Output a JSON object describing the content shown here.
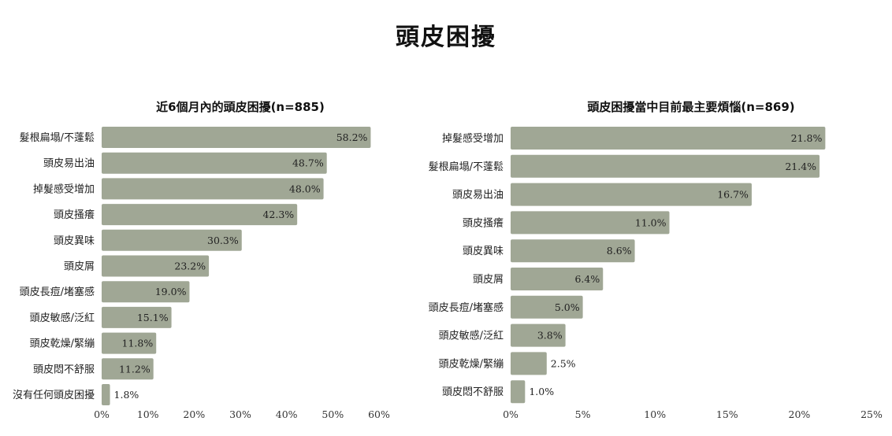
{
  "title": "頭皮困擾",
  "colors": {
    "bar": "#a0a795",
    "axis": "#cfcfcf",
    "text": "#222222"
  },
  "chart_data": [
    {
      "type": "bar",
      "orientation": "horizontal",
      "title": "近6個月內的頭皮困擾(n=885)",
      "categories": [
        "髮根扁塌/不蓬鬆",
        "頭皮易出油",
        "掉髮感受增加",
        "頭皮搔癢",
        "頭皮異味",
        "頭皮屑",
        "頭皮長痘/堵塞感",
        "頭皮敏感/泛紅",
        "頭皮乾燥/緊繃",
        "頭皮悶不舒服",
        "沒有任何頭皮困擾"
      ],
      "values": [
        58.2,
        48.7,
        48.0,
        42.3,
        30.3,
        23.2,
        19.0,
        15.1,
        11.8,
        11.2,
        1.8
      ],
      "value_labels": [
        "58.2%",
        "48.7%",
        "48.0%",
        "42.3%",
        "30.3%",
        "23.2%",
        "19.0%",
        "15.1%",
        "11.8%",
        "11.2%",
        "1.8%"
      ],
      "xlim": [
        0,
        60
      ],
      "xticks": [
        "0%",
        "10%",
        "20%",
        "30%",
        "40%",
        "50%",
        "60%"
      ],
      "xlabel": "",
      "ylabel": "",
      "grid": false
    },
    {
      "type": "bar",
      "orientation": "horizontal",
      "title": "頭皮困擾當中目前最主要煩惱(n=869)",
      "categories": [
        "掉髮感受增加",
        "髮根扁塌/不蓬鬆",
        "頭皮易出油",
        "頭皮搔癢",
        "頭皮異味",
        "頭皮屑",
        "頭皮長痘/堵塞感",
        "頭皮敏感/泛紅",
        "頭皮乾燥/緊繃",
        "頭皮悶不舒服"
      ],
      "values": [
        21.8,
        21.4,
        16.7,
        11.0,
        8.6,
        6.4,
        5.0,
        3.8,
        2.5,
        1.0
      ],
      "value_labels": [
        "21.8%",
        "21.4%",
        "16.7%",
        "11.0%",
        "8.6%",
        "6.4%",
        "5.0%",
        "3.8%",
        "2.5%",
        "1.0%"
      ],
      "xlim": [
        0,
        25
      ],
      "xticks": [
        "0%",
        "5%",
        "10%",
        "15%",
        "20%",
        "25%"
      ],
      "xlabel": "",
      "ylabel": "",
      "grid": false
    }
  ]
}
